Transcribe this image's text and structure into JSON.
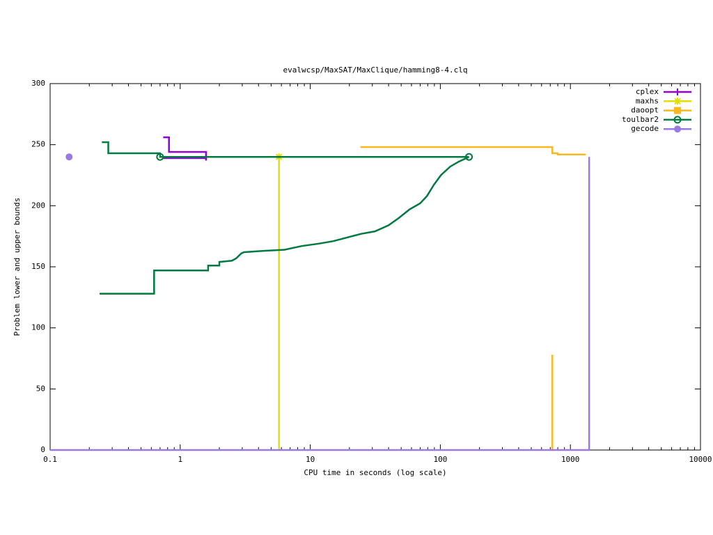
{
  "chart_data": {
    "type": "line",
    "title": "evalwcsp/MaxSAT/MaxClique/hamming8-4.clq",
    "xlabel": "CPU time in seconds (log scale)",
    "ylabel": "Problem lower and upper bounds",
    "xscale": "log",
    "xlim": [
      0.1,
      10000
    ],
    "xticks": [
      0.1,
      1,
      10,
      100,
      1000,
      10000
    ],
    "ylim": [
      0,
      300
    ],
    "yticks": [
      0,
      50,
      100,
      150,
      200,
      250,
      300
    ],
    "legend": "upper right",
    "series": [
      {
        "name": "cplex",
        "color": "#9400d3",
        "marker": "plus",
        "x": [
          0.74,
          0.82,
          0.82,
          1.58,
          1.58,
          null,
          0.74,
          1.58
        ],
        "values": [
          256,
          256,
          244,
          244,
          237,
          null,
          239,
          239
        ],
        "points": {
          "x": [],
          "values": []
        }
      },
      {
        "name": "maxhs",
        "color": "#e0e000",
        "marker": "star",
        "x": [
          5.75,
          5.75
        ],
        "values": [
          0,
          240
        ],
        "points": {
          "x": [
            5.75
          ],
          "values": [
            240
          ]
        }
      },
      {
        "name": "daoopt",
        "color": "#f8b820",
        "marker": "square",
        "x": [
          24.3,
          726,
          726,
          800,
          800,
          1312,
          null,
          726,
          726
        ],
        "values": [
          248,
          248,
          243,
          243,
          242,
          242,
          null,
          0,
          78
        ],
        "points": {
          "x": [],
          "values": []
        }
      },
      {
        "name": "toulbar2",
        "color": "#007a40",
        "marker": "circle",
        "x": [
          0.25,
          0.28,
          0.28,
          0.7,
          0.7,
          166,
          null,
          0.24,
          0.63,
          0.63,
          1.64,
          1.64,
          2.0,
          2.0,
          2.5,
          2.7,
          2.95,
          3.1,
          4.27,
          6.35,
          8.6,
          11.7,
          15,
          19.2,
          24.6,
          31.4,
          40,
          48,
          58,
          70,
          79,
          89,
          101,
          119,
          138,
          166
        ],
        "values": [
          252,
          252,
          243,
          243,
          240,
          240,
          null,
          128,
          128,
          147,
          147,
          151,
          151,
          154,
          155,
          157,
          161,
          162,
          163,
          164,
          167,
          169,
          171,
          174,
          177,
          179,
          184,
          190,
          197,
          202,
          208,
          217,
          225,
          232,
          236,
          240
        ],
        "points": {
          "x": [
            0.7,
            166
          ],
          "values": [
            240,
            240
          ]
        }
      },
      {
        "name": "gecode",
        "color": "#9a78e6",
        "marker": "disc",
        "x": [
          0.1,
          1394,
          1394
        ],
        "values": [
          0,
          0,
          240
        ],
        "points": {
          "x": [
            0.14
          ],
          "values": [
            240
          ]
        }
      }
    ]
  }
}
